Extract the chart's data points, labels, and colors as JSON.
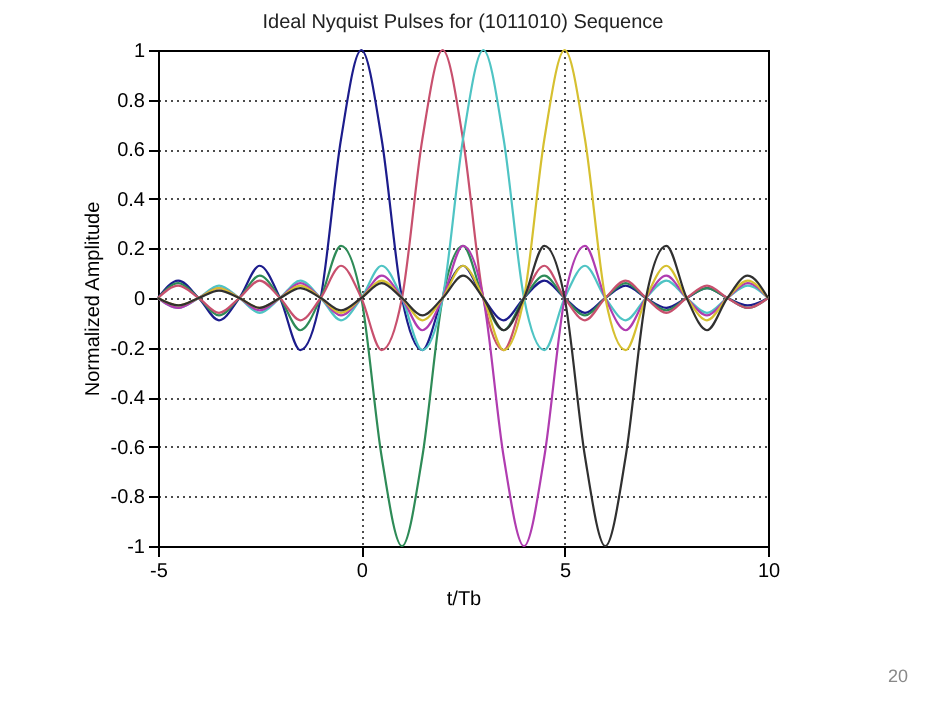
{
  "chart_data": {
    "type": "line",
    "title": "Ideal Nyquist Pulses for (1011010) Sequence",
    "xlabel": "t/Tb",
    "ylabel": "Normalized Amplitude",
    "x": [
      -5,
      -4.5,
      -4,
      -3.5,
      -3,
      -2.5,
      -2,
      -1.5,
      -1,
      -0.5,
      0,
      0.5,
      1,
      1.5,
      2,
      2.5,
      3,
      3.5,
      4,
      4.5,
      5,
      5.5,
      6,
      6.5,
      7,
      7.5,
      8,
      8.5,
      9,
      9.5,
      10
    ],
    "series": [
      {
        "color": "#1c1c8c",
        "values": [
          0,
          0.07,
          0,
          -0.09,
          0,
          0.13,
          0,
          -0.21,
          0,
          0.64,
          1,
          0.64,
          0,
          -0.21,
          0,
          0.13,
          0,
          -0.09,
          0,
          0.07,
          0,
          -0.06,
          0,
          0.05,
          0,
          -0.04,
          0,
          0.04,
          0,
          -0.03,
          0
        ]
      },
      {
        "color": "#2e8b57",
        "values": [
          0,
          0.06,
          0,
          -0.07,
          0,
          0.09,
          0,
          -0.13,
          0,
          0.21,
          0,
          -0.64,
          -1,
          -0.64,
          0,
          0.21,
          0,
          -0.13,
          0,
          0.09,
          0,
          -0.07,
          0,
          0.06,
          0,
          -0.05,
          0,
          0.04,
          0,
          -0.04,
          0
        ]
      },
      {
        "color": "#c8506e",
        "values": [
          0,
          0.05,
          0,
          -0.06,
          0,
          0.07,
          0,
          -0.09,
          0,
          0.13,
          0,
          -0.21,
          0,
          0.64,
          1,
          0.64,
          0,
          -0.21,
          0,
          0.13,
          0,
          -0.09,
          0,
          0.07,
          0,
          -0.06,
          0,
          0.05,
          0,
          -0.04,
          0
        ]
      },
      {
        "color": "#4fc4c4",
        "values": [
          0,
          -0.04,
          0,
          0.05,
          0,
          -0.06,
          0,
          0.07,
          0,
          -0.09,
          0,
          0.13,
          0,
          -0.21,
          0,
          0.64,
          1,
          0.64,
          0,
          -0.21,
          0,
          0.13,
          0,
          -0.09,
          0,
          0.07,
          0,
          -0.06,
          0,
          0.05,
          0
        ]
      },
      {
        "color": "#b03cb0",
        "values": [
          0,
          -0.04,
          0,
          0.04,
          0,
          -0.05,
          0,
          0.06,
          0,
          -0.07,
          0,
          0.09,
          0,
          -0.13,
          0,
          0.21,
          0,
          -0.64,
          -1,
          -0.64,
          0,
          0.21,
          0,
          -0.13,
          0,
          0.09,
          0,
          -0.07,
          0,
          0.06,
          0
        ]
      },
      {
        "color": "#d6c030",
        "values": [
          0,
          -0.03,
          0,
          0.04,
          0,
          -0.04,
          0,
          0.05,
          0,
          -0.06,
          0,
          0.07,
          0,
          -0.09,
          0,
          0.13,
          0,
          -0.21,
          0,
          0.64,
          1,
          0.64,
          0,
          -0.21,
          0,
          0.13,
          0,
          -0.09,
          0,
          0.07,
          0
        ]
      },
      {
        "color": "#303030",
        "values": [
          0,
          -0.03,
          0,
          0.03,
          0,
          -0.04,
          0,
          0.04,
          0,
          -0.05,
          0,
          0.06,
          0,
          -0.07,
          0,
          0.09,
          0,
          -0.13,
          0,
          0.21,
          0,
          -0.64,
          -1,
          -0.64,
          0,
          0.21,
          0,
          -0.13,
          0,
          0.09,
          0
        ]
      }
    ],
    "xlim": [
      -5,
      10
    ],
    "xticks": [
      -5,
      0,
      5,
      10
    ],
    "ylim": [
      -1,
      1
    ],
    "yticks": [
      -1,
      -0.8,
      -0.6,
      -0.4,
      -0.2,
      0,
      0.2,
      0.4,
      0.6,
      0.8,
      1
    ],
    "grid": true,
    "line_style": "solid",
    "annotations": [
      "20"
    ]
  }
}
